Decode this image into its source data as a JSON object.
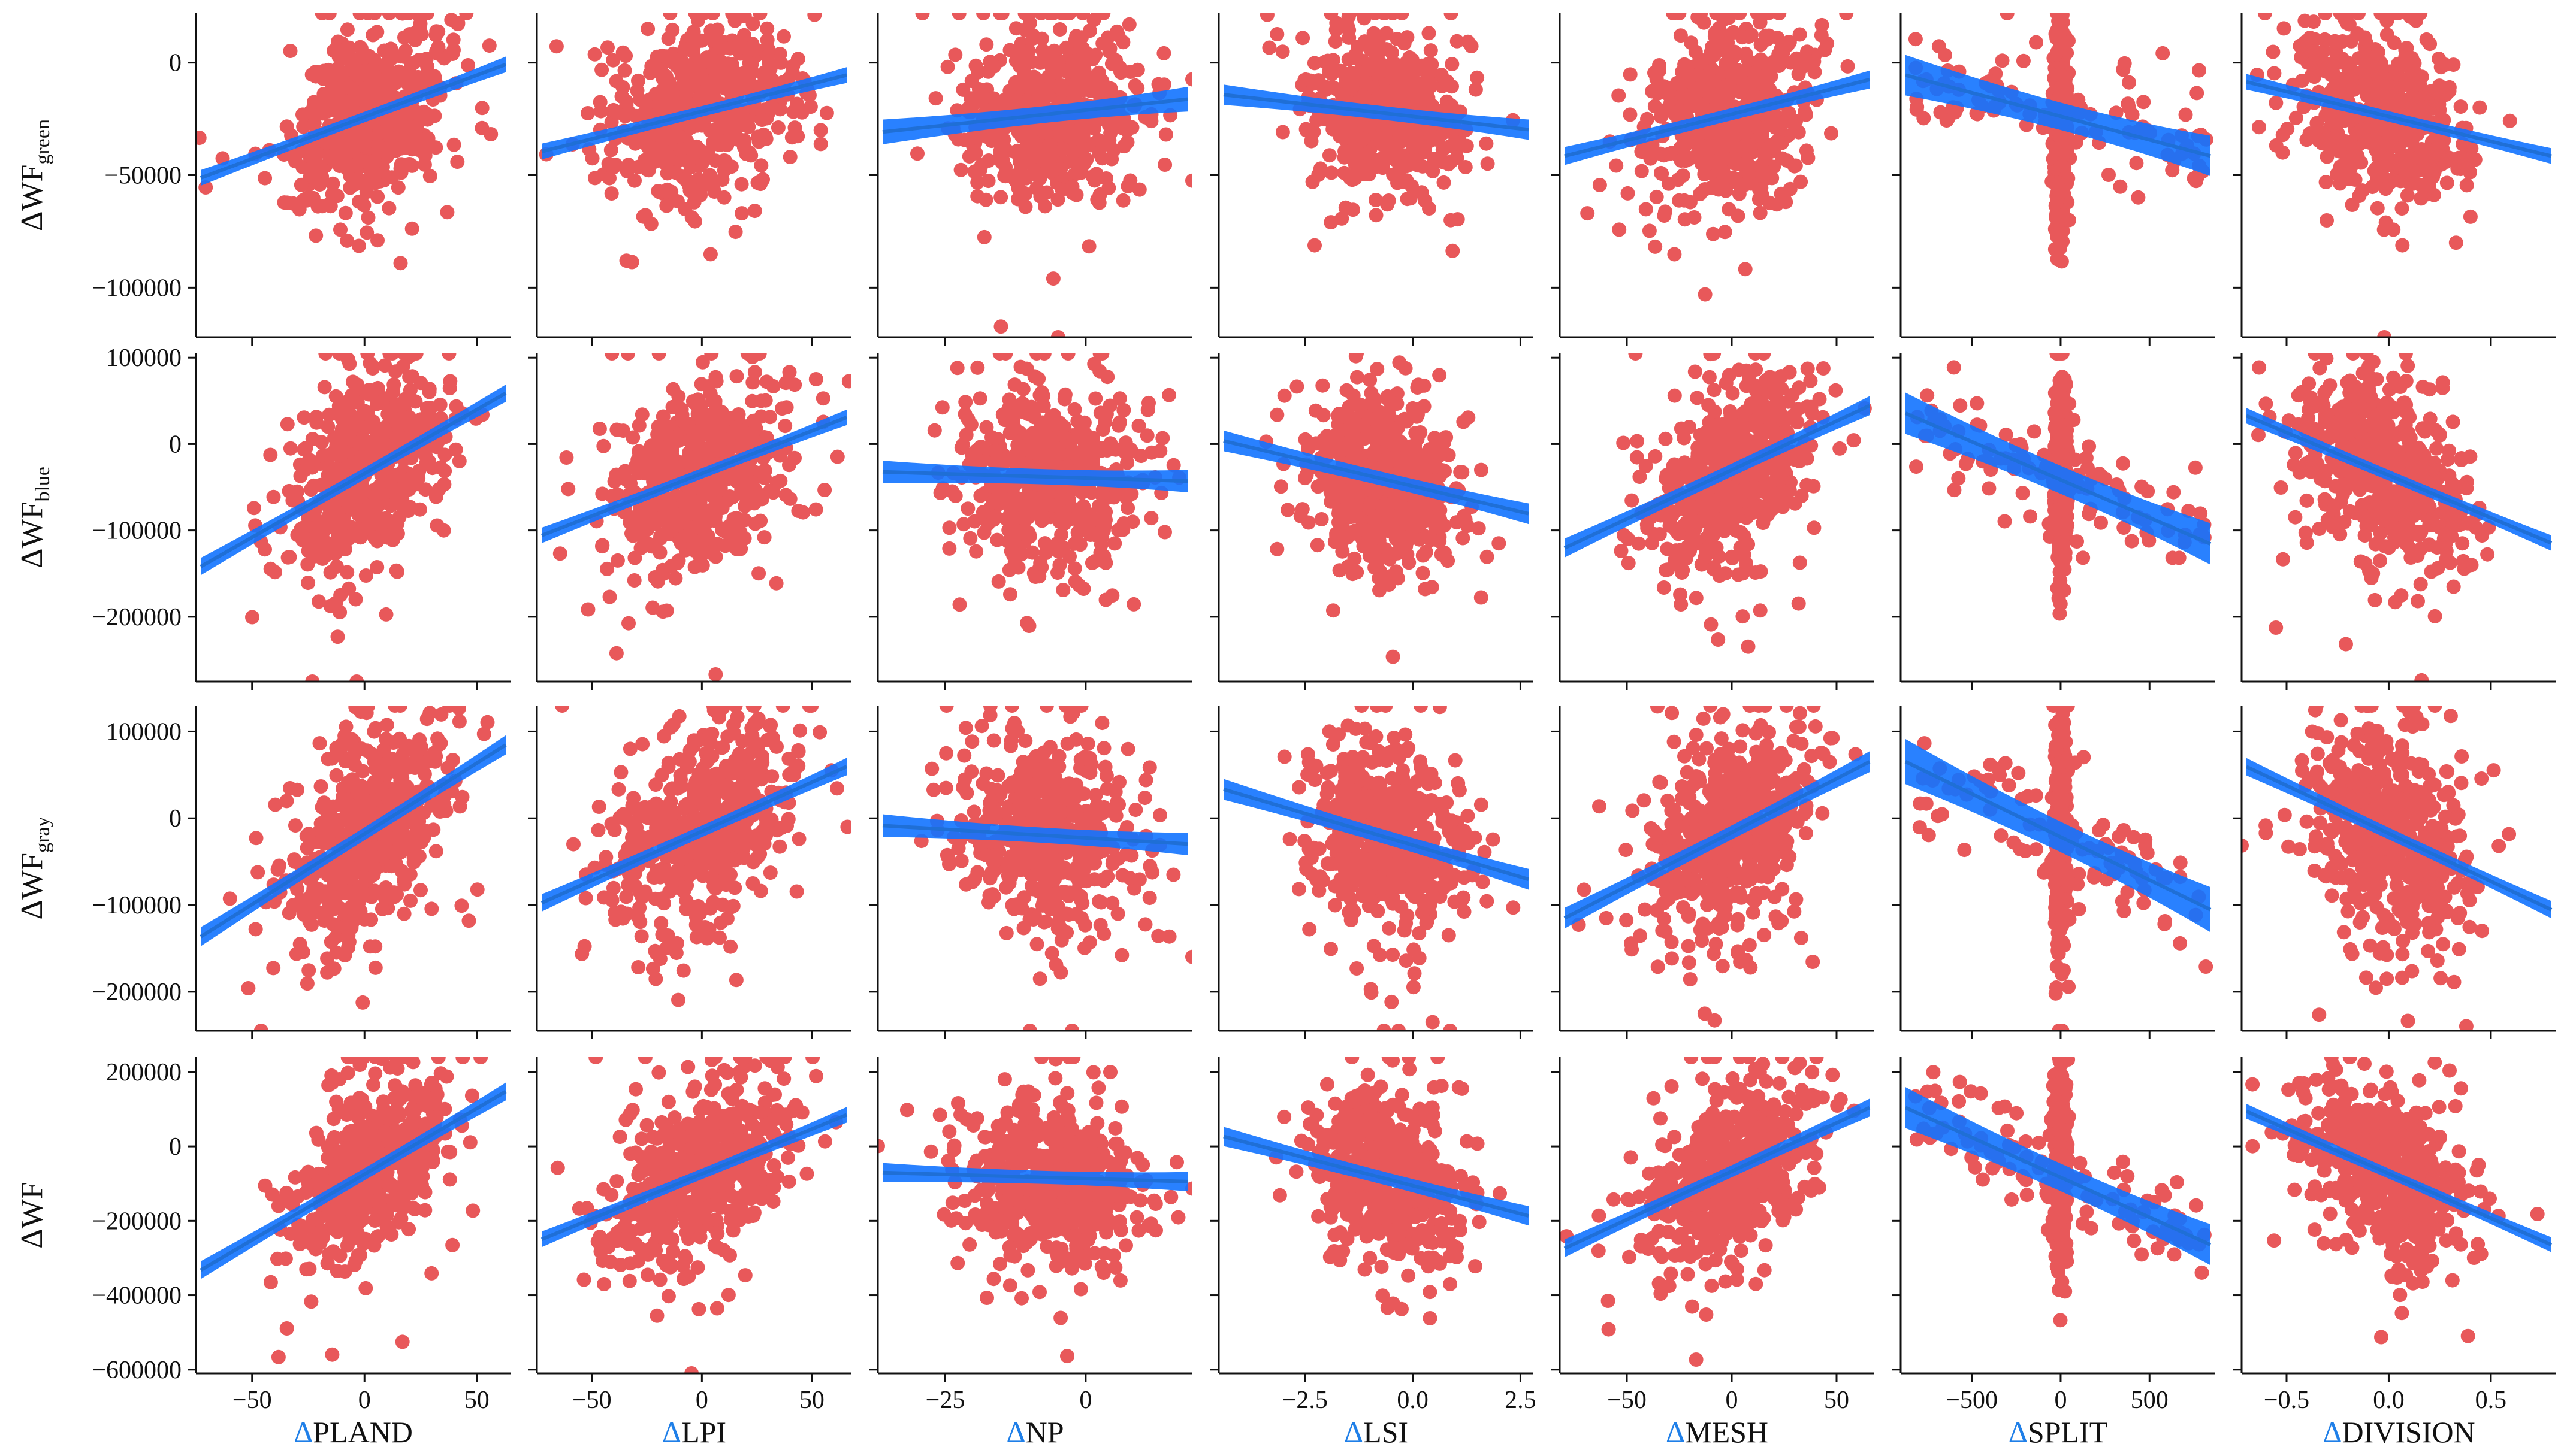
{
  "colors": {
    "points": "#e8585a",
    "fit_line": "#1f6fd6",
    "ci_band": "#1273ff",
    "axes": "#111111",
    "delta_x": "#1f7fe8"
  },
  "chart_data": {
    "type": "scatter",
    "layout": "grid 4 rows x 7 columns, rows share y axis, columns share x axis",
    "columns": [
      {
        "var": "PLAND",
        "xlabel_symbol": "Δ",
        "xlabel_text": "PLAND",
        "xlim": [
          -75,
          65
        ],
        "xticks": [
          -50,
          0,
          50
        ],
        "xtick_labels": [
          "−50",
          "0",
          "50"
        ]
      },
      {
        "var": "LPI",
        "xlabel_symbol": "Δ",
        "xlabel_text": "LPI",
        "xlim": [
          -75,
          68
        ],
        "xticks": [
          -50,
          0,
          50
        ],
        "xtick_labels": [
          "−50",
          "0",
          "50"
        ]
      },
      {
        "var": "NP",
        "xlabel_symbol": "Δ",
        "xlabel_text": "NP",
        "xlim": [
          -37,
          19
        ],
        "xticks": [
          -25,
          0
        ],
        "xtick_labels": [
          "−25",
          "0"
        ]
      },
      {
        "var": "LSI",
        "xlabel_symbol": "Δ",
        "xlabel_text": "LSI",
        "xlim": [
          -4.5,
          2.8
        ],
        "xticks": [
          -2.5,
          0.0,
          2.5
        ],
        "xtick_labels": [
          "−2.5",
          "0.0",
          "2.5"
        ]
      },
      {
        "var": "MESH",
        "xlabel_symbol": "Δ",
        "xlabel_text": "MESH",
        "xlim": [
          -82,
          68
        ],
        "xticks": [
          -50,
          0,
          50
        ],
        "xtick_labels": [
          "−50",
          "0",
          "50"
        ]
      },
      {
        "var": "SPLIT",
        "xlabel_symbol": "Δ",
        "xlabel_text": "SPLIT",
        "xlim": [
          -900,
          870
        ],
        "xticks": [
          -500,
          0,
          500
        ],
        "xtick_labels": [
          "−500",
          "0",
          "500"
        ]
      },
      {
        "var": "DIVISION",
        "xlabel_symbol": "Δ",
        "xlabel_text": "DIVISION",
        "xlim": [
          -0.72,
          0.82
        ],
        "xticks": [
          -0.5,
          0.0,
          0.5
        ],
        "xtick_labels": [
          "−0.5",
          "0.0",
          "0.5"
        ]
      }
    ],
    "rows": [
      {
        "var": "WF_green",
        "ylabel_main": "ΔWF",
        "ylabel_sub": "green",
        "ylim": [
          -122000,
          22000
        ],
        "yticks": [
          -100000,
          -50000,
          0
        ],
        "ytick_labels": [
          "−100000",
          "−50000",
          "0"
        ],
        "center": -25000,
        "spread": 18000,
        "fits": [
          {
            "col": "PLAND",
            "y0": -52000,
            "y1": 0,
            "band": 3500
          },
          {
            "col": "LPI",
            "y0": -40000,
            "y1": -5000,
            "band": 3500
          },
          {
            "col": "NP",
            "y0": -31000,
            "y1": -16000,
            "band": 5500
          },
          {
            "col": "LSI",
            "y0": -14000,
            "y1": -30000,
            "band": 4500
          },
          {
            "col": "MESH",
            "y0": -42000,
            "y1": -7000,
            "band": 4000
          },
          {
            "col": "SPLIT",
            "y0": -5000,
            "y1": -42000,
            "band": 9000
          },
          {
            "col": "DIVISION",
            "y0": -8000,
            "y1": -42000,
            "band": 3500
          }
        ]
      },
      {
        "var": "WF_blue",
        "ylabel_main": "ΔWF",
        "ylabel_sub": "blue",
        "ylim": [
          -275000,
          105000
        ],
        "yticks": [
          -200000,
          -100000,
          0,
          100000
        ],
        "ytick_labels": [
          "−200000",
          "−100000",
          "0",
          "100000"
        ],
        "center": -35000,
        "spread": 48000,
        "fits": [
          {
            "col": "PLAND",
            "y0": -145000,
            "y1": 62000,
            "band": 10000
          },
          {
            "col": "LPI",
            "y0": -108000,
            "y1": 33000,
            "band": 9000
          },
          {
            "col": "NP",
            "y0": -32000,
            "y1": -43000,
            "band": 13000
          },
          {
            "col": "LSI",
            "y0": 5000,
            "y1": -82000,
            "band": 12000
          },
          {
            "col": "MESH",
            "y0": -123000,
            "y1": 47000,
            "band": 11000
          },
          {
            "col": "SPLIT",
            "y0": 38000,
            "y1": -118000,
            "band": 24000
          },
          {
            "col": "DIVISION",
            "y0": 35000,
            "y1": -117000,
            "band": 9000
          }
        ]
      },
      {
        "var": "WF_gray",
        "ylabel_main": "ΔWF",
        "ylabel_sub": "gray",
        "ylim": [
          -245000,
          130000
        ],
        "yticks": [
          -200000,
          -100000,
          0,
          100000
        ],
        "ytick_labels": [
          "−200000",
          "−100000",
          "0",
          "100000"
        ],
        "center": -25000,
        "spread": 52000,
        "fits": [
          {
            "col": "PLAND",
            "y0": -140000,
            "y1": 88000,
            "band": 11000
          },
          {
            "col": "LPI",
            "y0": -100000,
            "y1": 62000,
            "band": 10000
          },
          {
            "col": "NP",
            "y0": -8000,
            "y1": -30000,
            "band": 13000
          },
          {
            "col": "LSI",
            "y0": 35000,
            "y1": -72000,
            "band": 12000
          },
          {
            "col": "MESH",
            "y0": -118000,
            "y1": 68000,
            "band": 12000
          },
          {
            "col": "SPLIT",
            "y0": 68000,
            "y1": -108000,
            "band": 26000
          },
          {
            "col": "DIVISION",
            "y0": 62000,
            "y1": -108000,
            "band": 10000
          }
        ]
      },
      {
        "var": "WF",
        "ylabel_main": "ΔWF",
        "ylabel_sub": "",
        "ylim": [
          -610000,
          240000
        ],
        "yticks": [
          -600000,
          -400000,
          -200000,
          0,
          200000
        ],
        "ytick_labels": [
          "−600000",
          "−400000",
          "−200000",
          "0",
          "200000"
        ],
        "center": -80000,
        "spread": 105000,
        "fits": [
          {
            "col": "PLAND",
            "y0": -340000,
            "y1": 155000,
            "band": 24000
          },
          {
            "col": "LPI",
            "y0": -255000,
            "y1": 90000,
            "band": 21000
          },
          {
            "col": "NP",
            "y0": -70000,
            "y1": -95000,
            "band": 26000
          },
          {
            "col": "LSI",
            "y0": 30000,
            "y1": -190000,
            "band": 26000
          },
          {
            "col": "MESH",
            "y0": -280000,
            "y1": 110000,
            "band": 24000
          },
          {
            "col": "SPLIT",
            "y0": 110000,
            "y1": -270000,
            "band": 55000
          },
          {
            "col": "DIVISION",
            "y0": 100000,
            "y1": -270000,
            "band": 20000
          }
        ]
      }
    ],
    "x_distributions": {
      "PLAND": {
        "center": 2,
        "spread": 18
      },
      "LPI": {
        "center": 0,
        "spread": 22
      },
      "NP": {
        "center": -6,
        "spread": 8
      },
      "LSI": {
        "center": -0.6,
        "spread": 0.9
      },
      "MESH": {
        "center": -2,
        "spread": 20
      },
      "SPLIT": {
        "center": 0,
        "spread": 0
      },
      "DIVISION": {
        "center": -0.02,
        "spread": 0.2
      }
    },
    "n_points_per_panel": 520
  }
}
